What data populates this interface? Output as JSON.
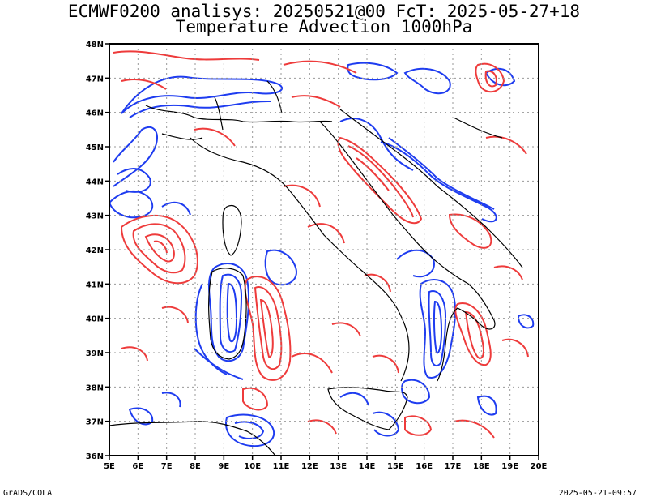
{
  "header": {
    "title_line1": "ECMWF0200 analisys: 20250521@00 FcT: 2025-05-27+18",
    "title_line2": "Temperature Advection 1000hPa"
  },
  "footer": {
    "left": "GrADS/COLA",
    "right": "2025-05-21-09:57"
  },
  "map": {
    "lon_range": [
      5,
      20
    ],
    "lat_range": [
      36,
      48
    ],
    "lon_labels": [
      "5E",
      "6E",
      "7E",
      "8E",
      "9E",
      "10E",
      "11E",
      "12E",
      "13E",
      "14E",
      "15E",
      "16E",
      "17E",
      "18E",
      "19E",
      "20E"
    ],
    "lat_labels": [
      "36N",
      "37N",
      "38N",
      "39N",
      "40N",
      "41N",
      "42N",
      "43N",
      "44N",
      "45N",
      "46N",
      "47N",
      "48N"
    ],
    "colors": {
      "positive": "#ee3b3b",
      "negative": "#1e3cf0",
      "border": "#000000",
      "grid": "#9a9a9a"
    }
  }
}
